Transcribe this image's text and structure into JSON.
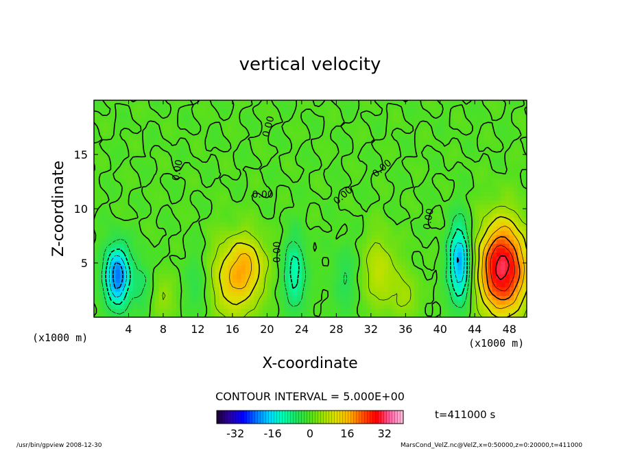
{
  "chart_data": {
    "type": "heatmap",
    "title": "vertical velocity",
    "xlabel": "X-coordinate",
    "ylabel": "Z-coordinate",
    "x_unit": "(x1000 m)",
    "y_unit": "(x1000 m)",
    "xlim": [
      0,
      50
    ],
    "ylim": [
      0,
      20
    ],
    "x_ticks": [
      4,
      8,
      12,
      16,
      20,
      24,
      28,
      32,
      36,
      40,
      44,
      48
    ],
    "y_ticks": [
      5,
      10,
      15
    ],
    "contour_interval_text": "CONTOUR INTERVAL = 5.000E+00",
    "contour_labels": [
      {
        "text": "0.00",
        "x": 20.5,
        "y": 17.5,
        "angle": -75
      },
      {
        "text": "0.00",
        "x": 10.0,
        "y": 13.5,
        "angle": -80
      },
      {
        "text": "0.00",
        "x": 19.5,
        "y": 11.0,
        "angle": 0
      },
      {
        "text": "0.00",
        "x": 21.5,
        "y": 6.0,
        "angle": -90
      },
      {
        "text": "0.00",
        "x": 29.0,
        "y": 11.0,
        "angle": -40
      },
      {
        "text": "0.00",
        "x": 33.5,
        "y": 13.5,
        "angle": -40
      },
      {
        "text": "0.00",
        "x": 39.0,
        "y": 9.0,
        "angle": -80
      }
    ],
    "features": [
      {
        "x": 2.7,
        "z": 3.8,
        "peak": -24,
        "sx": 1.0,
        "sz": 2.0
      },
      {
        "x": 5.5,
        "z": 3.0,
        "peak": -6,
        "sx": 0.8,
        "sz": 1.8
      },
      {
        "x": 8.0,
        "z": 1.8,
        "peak": 5,
        "sx": 1.0,
        "sz": 1.6
      },
      {
        "x": 12.0,
        "z": 3.0,
        "peak": -5,
        "sx": 1.0,
        "sz": 2.2
      },
      {
        "x": 16.2,
        "z": 3.5,
        "peak": 14,
        "sx": 2.0,
        "sz": 2.6
      },
      {
        "x": 18.0,
        "z": 5.0,
        "peak": 8,
        "sx": 1.4,
        "sz": 1.8
      },
      {
        "x": 23.2,
        "z": 4.0,
        "peak": -12,
        "sx": 0.9,
        "sz": 2.4
      },
      {
        "x": 29.0,
        "z": 3.5,
        "peak": -5,
        "sx": 1.0,
        "sz": 2.4
      },
      {
        "x": 33.0,
        "z": 4.2,
        "peak": 9,
        "sx": 1.3,
        "sz": 2.4
      },
      {
        "x": 36.0,
        "z": 2.0,
        "peak": 6,
        "sx": 1.0,
        "sz": 1.6
      },
      {
        "x": 42.3,
        "z": 5.0,
        "peak": -22,
        "sx": 0.9,
        "sz": 2.6
      },
      {
        "x": 47.2,
        "z": 4.5,
        "peak": 32,
        "sx": 2.0,
        "sz": 3.0
      }
    ],
    "colorbar": {
      "ticks": [
        -32,
        -16,
        0,
        16,
        32
      ],
      "range": [
        -40,
        40
      ],
      "colors": [
        "#1a0030",
        "#2b00a0",
        "#0000ff",
        "#0078ff",
        "#00d8ff",
        "#00ffb0",
        "#20e060",
        "#50e020",
        "#a0e000",
        "#e0e000",
        "#ffb000",
        "#ff5000",
        "#ff0000",
        "#ff60a0",
        "#ffc0e0"
      ]
    }
  },
  "time_label": "t=411000  s",
  "footer_left": "/usr/bin/gpview   2008-12-30",
  "footer_right": "MarsCond_VelZ.nc@VelZ,x=0:50000,z=0:20000,t=411000"
}
